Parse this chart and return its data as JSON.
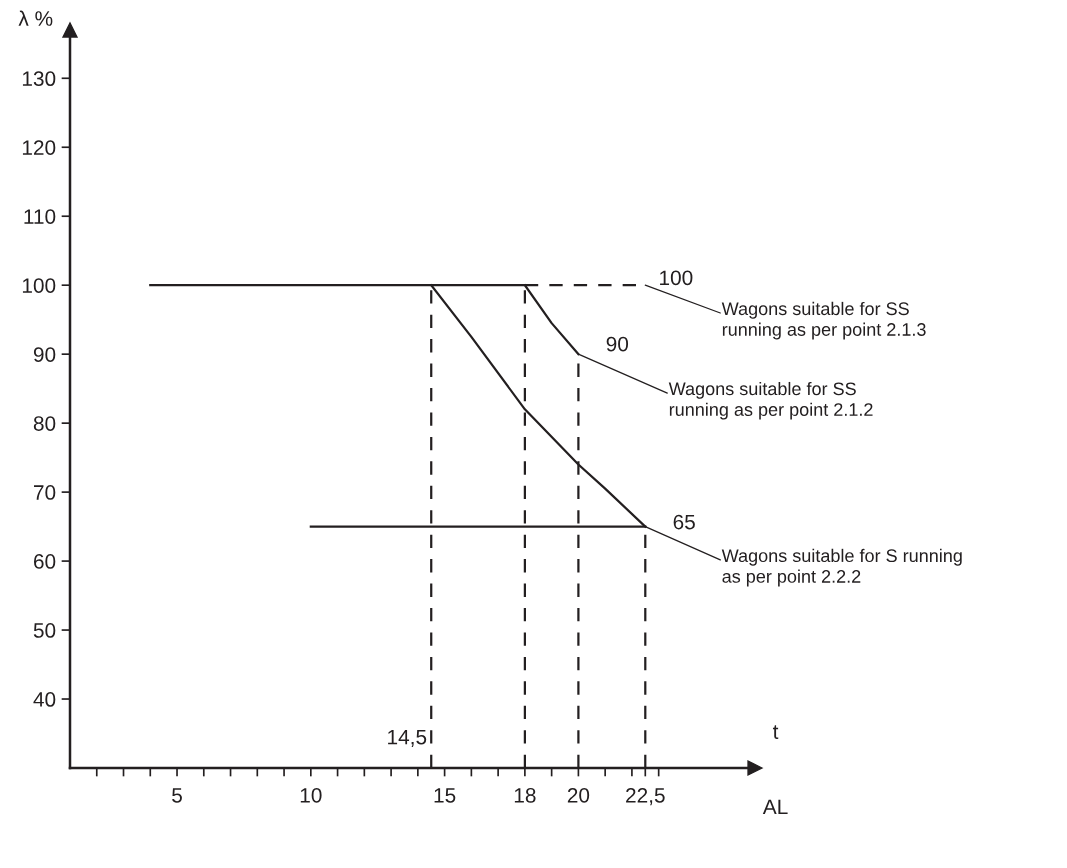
{
  "chart_data": {
    "type": "line",
    "xlabel": "t",
    "ylabel": "λ %",
    "xlim": [
      1,
      26.6
    ],
    "ylim": [
      30,
      137
    ],
    "xticks": [
      {
        "value": 2,
        "label": null
      },
      {
        "value": 3,
        "label": null
      },
      {
        "value": 4,
        "label": null
      },
      5,
      {
        "value": 6,
        "label": null
      },
      {
        "value": 7,
        "label": null
      },
      {
        "value": 8,
        "label": null
      },
      {
        "value": 9,
        "label": null
      },
      10,
      {
        "value": 11,
        "label": null
      },
      {
        "value": 12,
        "label": null
      },
      {
        "value": 13,
        "label": null
      },
      {
        "value": 14,
        "label": null
      },
      15,
      {
        "value": 16,
        "label": null
      },
      {
        "value": 17,
        "label": null
      },
      18,
      {
        "value": 19,
        "label": null
      },
      20,
      {
        "value": 21,
        "label": null
      },
      {
        "value": 22,
        "label": null
      },
      {
        "value": 22.5,
        "label": "22,5"
      },
      {
        "value": 23,
        "label": null
      }
    ],
    "yticks": [
      40,
      50,
      60,
      70,
      80,
      90,
      100,
      110,
      120,
      130
    ],
    "grid": false,
    "marker": "none",
    "series": [
      {
        "color": "#231f20",
        "line_style": "solid",
        "x": [
          4,
          18
        ],
        "values": [
          100,
          100
        ]
      },
      {
        "color": "#231f20",
        "line_style": "dashed",
        "x": [
          18,
          22.5
        ],
        "values": [
          100,
          100
        ]
      },
      {
        "color": "#231f20",
        "line_style": "solid",
        "x": [
          14.5,
          16,
          18,
          20,
          21,
          22.5
        ],
        "values": [
          100,
          92.5,
          82,
          74,
          70.5,
          65
        ]
      },
      {
        "color": "#231f20",
        "line_style": "solid",
        "x": [
          18,
          19,
          20
        ],
        "values": [
          100,
          94.5,
          90
        ]
      },
      {
        "color": "#231f20",
        "line_style": "solid",
        "x": [
          10,
          22.5
        ],
        "values": [
          65,
          65
        ]
      },
      {
        "color": "#231f20",
        "line_style": "dashed",
        "x": [
          14.5,
          14.5
        ],
        "values": [
          30,
          100
        ]
      },
      {
        "color": "#231f20",
        "line_style": "dashed",
        "x": [
          18,
          18
        ],
        "values": [
          30,
          100
        ]
      },
      {
        "color": "#231f20",
        "line_style": "dashed",
        "x": [
          20,
          20
        ],
        "values": [
          30,
          90
        ]
      },
      {
        "color": "#231f20",
        "line_style": "dashed",
        "x": [
          22.5,
          22.5
        ],
        "values": [
          30,
          65
        ]
      }
    ],
    "annotations": [
      {
        "text": "100",
        "x": 22.5,
        "y": 100
      },
      {
        "text": "Wagons suitable for SS\nrunning as per point 2.1.3",
        "x": 22.5,
        "y": 100
      },
      {
        "text": "90",
        "x": 20,
        "y": 90
      },
      {
        "text": "Wagons suitable for SS\nrunning as per point 2.1.2",
        "x": 20,
        "y": 90
      },
      {
        "text": "65",
        "x": 22.5,
        "y": 65
      },
      {
        "text": "Wagons suitable for S running\nas per point 2.2.2",
        "x": 22.5,
        "y": 65
      },
      {
        "text": "14,5",
        "x": 14.5,
        "y": 30
      },
      "AL"
    ]
  }
}
